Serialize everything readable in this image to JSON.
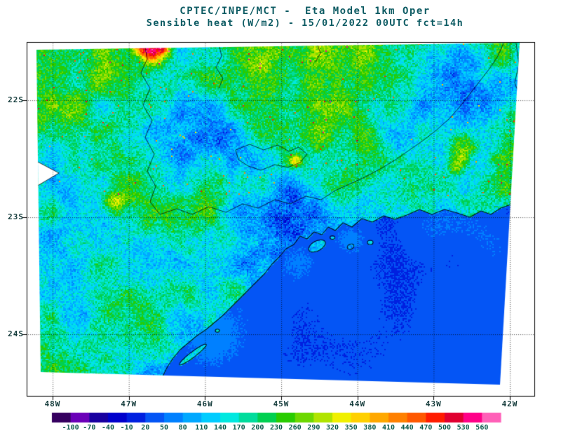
{
  "title": {
    "line1": "CPTEC/INPE/MCT -  Eta Model 1km Oper",
    "line2": "Sensible heat (W/m2) - 15/01/2022 00UTC fct=14h"
  },
  "axes": {
    "lat_ticks": [
      "22S",
      "23S",
      "24S"
    ],
    "lon_ticks": [
      "48W",
      "47W",
      "46W",
      "45W",
      "44W",
      "43W",
      "42W"
    ]
  },
  "colorbar": {
    "labels": [
      "-100",
      "-70",
      "-40",
      "-10",
      "20",
      "50",
      "80",
      "110",
      "140",
      "170",
      "200",
      "230",
      "260",
      "290",
      "320",
      "350",
      "380",
      "410",
      "440",
      "470",
      "500",
      "530",
      "560"
    ]
  },
  "theme": {
    "background": "#ffffff",
    "frame_color": "#000000",
    "title_color": "#0d5b63",
    "axis_label_color": "#153c3c",
    "legend_label_color": "#0b5a4c",
    "ocean_color": "#0455f5"
  },
  "chart_data": {
    "type": "heatmap",
    "title": "CPTEC/INPE/MCT - Eta Model 1km Oper",
    "subtitle": "Sensible heat (W/m2) - 15/01/2022 00UTC fct=14h",
    "variable": "Sensible heat",
    "units": "W/m2",
    "model": "Eta Model 1km Oper",
    "run": "15/01/2022 00UTC",
    "forecast": "fct=14h",
    "x_axis": {
      "ticks": [
        "48W",
        "47W",
        "46W",
        "45W",
        "44W",
        "43W",
        "42W"
      ]
    },
    "y_axis": {
      "ticks": [
        "22S",
        "23S",
        "24S"
      ]
    },
    "grid": "dotted",
    "legend_position": "bottom",
    "legend": {
      "boundaries": [
        -100,
        -70,
        -40,
        -10,
        20,
        50,
        80,
        110,
        140,
        170,
        200,
        230,
        260,
        290,
        320,
        350,
        380,
        410,
        440,
        470,
        500,
        530,
        560
      ],
      "colors": [
        "#35005f",
        "#6a00b8",
        "#1800a0",
        "#0000cc",
        "#0020e0",
        "#0455f5",
        "#0080ff",
        "#00a8ff",
        "#00ccff",
        "#00e8e0",
        "#00dc9c",
        "#00d050",
        "#28cc00",
        "#6cd800",
        "#b0e400",
        "#f0f000",
        "#ffd000",
        "#ffa800",
        "#ff8000",
        "#ff5800",
        "#ff1c00",
        "#e00030",
        "#ff0088",
        "#ff60b8"
      ]
    },
    "summary": "Ocean areas ~20-50 W/m2 (uniform blue); land mostly 80-320 W/m2 (cyan-green-yellow speckle) with isolated spots above 400 W/m2 (orange-red) in the northern band"
  }
}
